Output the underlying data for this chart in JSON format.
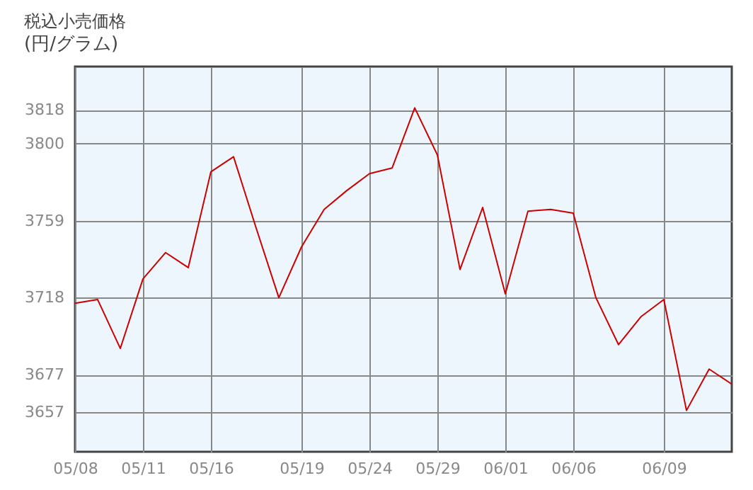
{
  "chart_data": {
    "type": "line",
    "title": "税込小売価格",
    "subtitle": "(円/グラム)",
    "categories": [
      "05/08",
      null,
      null,
      "05/11",
      null,
      null,
      "05/16",
      null,
      null,
      null,
      "05/19",
      null,
      null,
      "05/24",
      null,
      null,
      "05/29",
      null,
      null,
      "06/01",
      null,
      null,
      "06/06",
      null,
      null,
      null,
      "06/09",
      null,
      null,
      null
    ],
    "series": [
      {
        "color": "#cc0000",
        "values": [
          3715,
          3717,
          3691,
          3728,
          3742,
          3734,
          3785,
          3793,
          3755,
          3718,
          3745,
          3765,
          3775,
          3784,
          3787,
          3819,
          3794,
          3733,
          3766,
          3720,
          3764,
          3765,
          3763,
          3718,
          3693,
          3708,
          3717,
          3658,
          3680,
          3672
        ]
      }
    ],
    "ylim": [
      3636,
      3841
    ],
    "yticks": [
      3657,
      3677,
      3718,
      3759,
      3800,
      3818
    ],
    "grid": true,
    "marker": "none",
    "line_style": "solid"
  }
}
